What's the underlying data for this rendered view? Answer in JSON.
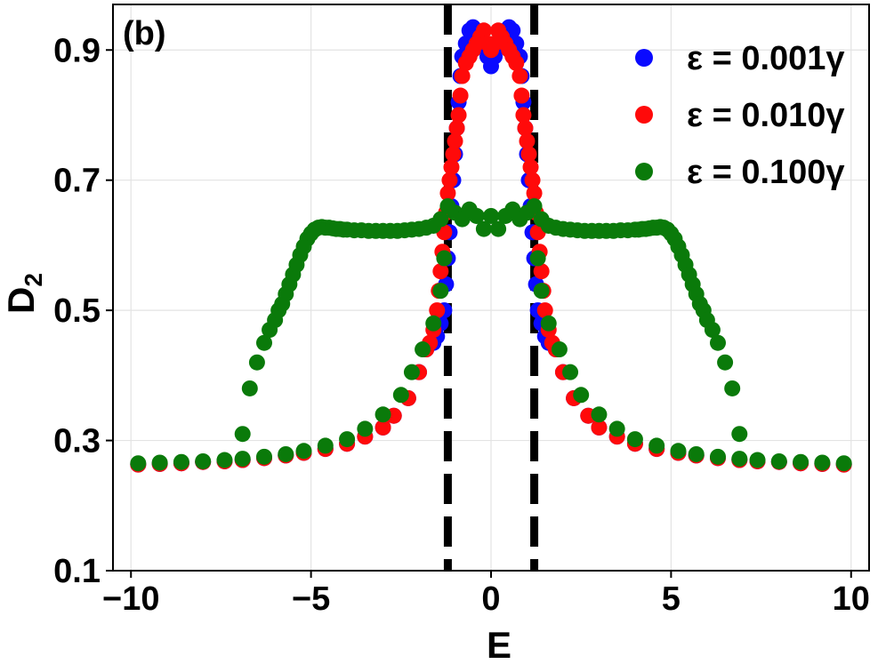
{
  "chart_data": {
    "type": "scatter",
    "panel_label": "(b)",
    "xlabel": "E",
    "ylabel_main": "D",
    "ylabel_sub": "2",
    "xlim": [
      -10.5,
      10.5
    ],
    "ylim": [
      0.1,
      0.97
    ],
    "xticks": [
      -10,
      -5,
      0,
      5,
      10
    ],
    "xtick_labels": [
      "−10",
      "−5",
      "0",
      "5",
      "10"
    ],
    "yticks": [
      0.1,
      0.3,
      0.5,
      0.7,
      0.9
    ],
    "ytick_labels": [
      "0.1",
      "0.3",
      "0.5",
      "0.7",
      "0.9"
    ],
    "grid": true,
    "legend_position": "top-right",
    "vlines": [
      -1.2,
      1.2
    ],
    "vline_color": "#000000",
    "series": [
      {
        "name": "ε = 0.001γ",
        "color": "#0a0aff",
        "x": [
          -9.8,
          -9.2,
          -8.6,
          -8.0,
          -7.4,
          -6.9,
          -6.3,
          -5.7,
          -5.2,
          -4.6,
          -4.0,
          -3.5,
          -3.0,
          -2.7,
          -2.3,
          -2.0,
          -1.8,
          -1.6,
          -1.5,
          -1.4,
          -1.3,
          -1.25,
          -1.2,
          -1.15,
          -1.1,
          -1.05,
          -1.0,
          -0.95,
          -0.9,
          -0.85,
          -0.8,
          -0.7,
          -0.6,
          -0.5,
          -0.4,
          -0.3,
          -0.2,
          -0.1,
          0.0,
          0.1,
          0.2,
          0.3,
          0.4,
          0.5,
          0.6,
          0.7,
          0.8,
          0.85,
          0.9,
          0.95,
          1.0,
          1.05,
          1.1,
          1.15,
          1.2,
          1.25,
          1.3,
          1.4,
          1.5,
          1.6,
          1.8,
          2.0,
          2.3,
          2.7,
          3.0,
          3.5,
          4.0,
          4.6,
          5.2,
          5.7,
          6.3,
          6.9,
          7.4,
          8.0,
          8.6,
          9.2,
          9.8
        ],
        "y": [
          0.263,
          0.264,
          0.265,
          0.267,
          0.268,
          0.27,
          0.273,
          0.277,
          0.281,
          0.287,
          0.295,
          0.306,
          0.32,
          0.338,
          0.365,
          0.405,
          0.44,
          0.45,
          0.46,
          0.48,
          0.5,
          0.54,
          0.58,
          0.62,
          0.66,
          0.7,
          0.74,
          0.78,
          0.82,
          0.86,
          0.89,
          0.91,
          0.93,
          0.935,
          0.93,
          0.92,
          0.905,
          0.89,
          0.875,
          0.89,
          0.905,
          0.92,
          0.93,
          0.935,
          0.93,
          0.91,
          0.89,
          0.86,
          0.82,
          0.78,
          0.74,
          0.7,
          0.66,
          0.62,
          0.58,
          0.54,
          0.5,
          0.48,
          0.46,
          0.45,
          0.44,
          0.405,
          0.365,
          0.338,
          0.32,
          0.306,
          0.295,
          0.287,
          0.281,
          0.277,
          0.273,
          0.27,
          0.268,
          0.267,
          0.265,
          0.264,
          0.263
        ]
      },
      {
        "name": "ε = 0.010γ",
        "color": "#ff0a0a",
        "x": [
          -9.8,
          -9.2,
          -8.6,
          -8.0,
          -7.4,
          -6.9,
          -6.3,
          -5.7,
          -5.2,
          -4.6,
          -4.0,
          -3.5,
          -3.0,
          -2.7,
          -2.3,
          -2.0,
          -1.8,
          -1.7,
          -1.6,
          -1.5,
          -1.45,
          -1.4,
          -1.35,
          -1.3,
          -1.25,
          -1.2,
          -1.15,
          -1.1,
          -1.05,
          -1.0,
          -0.95,
          -0.9,
          -0.85,
          -0.8,
          -0.7,
          -0.6,
          -0.5,
          -0.4,
          -0.3,
          -0.2,
          -0.1,
          0.0,
          0.1,
          0.2,
          0.3,
          0.4,
          0.5,
          0.6,
          0.7,
          0.8,
          0.85,
          0.9,
          0.95,
          1.0,
          1.05,
          1.1,
          1.15,
          1.2,
          1.25,
          1.3,
          1.35,
          1.4,
          1.45,
          1.5,
          1.6,
          1.7,
          1.8,
          2.0,
          2.3,
          2.7,
          3.0,
          3.5,
          4.0,
          4.6,
          5.2,
          5.7,
          6.3,
          6.9,
          7.4,
          8.0,
          8.6,
          9.2,
          9.8
        ],
        "y": [
          0.263,
          0.264,
          0.265,
          0.267,
          0.268,
          0.27,
          0.273,
          0.277,
          0.281,
          0.287,
          0.295,
          0.306,
          0.32,
          0.338,
          0.365,
          0.405,
          0.44,
          0.45,
          0.47,
          0.5,
          0.53,
          0.56,
          0.59,
          0.62,
          0.65,
          0.68,
          0.7,
          0.72,
          0.74,
          0.76,
          0.78,
          0.8,
          0.83,
          0.86,
          0.88,
          0.89,
          0.9,
          0.91,
          0.92,
          0.93,
          0.91,
          0.9,
          0.91,
          0.93,
          0.92,
          0.91,
          0.9,
          0.89,
          0.88,
          0.86,
          0.83,
          0.8,
          0.78,
          0.76,
          0.74,
          0.72,
          0.7,
          0.68,
          0.65,
          0.62,
          0.59,
          0.56,
          0.53,
          0.5,
          0.47,
          0.45,
          0.44,
          0.405,
          0.365,
          0.338,
          0.32,
          0.306,
          0.295,
          0.287,
          0.281,
          0.277,
          0.273,
          0.27,
          0.268,
          0.267,
          0.265,
          0.264,
          0.263
        ]
      },
      {
        "name": "ε = 0.100γ",
        "color": "#0a7a0a",
        "x": [
          -9.8,
          -9.2,
          -8.6,
          -8.0,
          -7.4,
          -6.9,
          -6.3,
          -5.7,
          -5.2,
          -4.6,
          -4.0,
          -3.5,
          -3.0,
          -2.5,
          -2.2,
          -1.9,
          -1.6,
          -1.4,
          -1.3,
          -6.9,
          -6.7,
          -6.5,
          -6.3,
          -6.15,
          -6.0,
          -5.9,
          -5.8,
          -5.7,
          -5.6,
          -5.5,
          -5.4,
          -5.3,
          -5.2,
          -5.1,
          -5.0,
          -4.9,
          -4.8,
          -4.7,
          -4.6,
          -4.5,
          -4.4,
          -4.3,
          -4.2,
          -4.1,
          -4.0,
          -3.8,
          -3.6,
          -3.4,
          -3.2,
          -3.0,
          -2.8,
          -2.6,
          -2.4,
          -2.2,
          -2.0,
          -1.8,
          -1.6,
          -1.4,
          -1.2,
          -1.0,
          -0.8,
          -0.6,
          -0.4,
          -0.2,
          0.0,
          0.2,
          0.4,
          0.6,
          0.8,
          1.0,
          1.2,
          1.4,
          1.6,
          1.8,
          2.0,
          2.2,
          2.4,
          2.6,
          2.8,
          3.0,
          3.2,
          3.4,
          3.6,
          3.8,
          4.0,
          4.1,
          4.2,
          4.3,
          4.4,
          4.5,
          4.6,
          4.7,
          4.8,
          4.9,
          5.0,
          5.1,
          5.2,
          5.3,
          5.4,
          5.5,
          5.6,
          5.7,
          5.8,
          5.9,
          6.0,
          6.15,
          6.3,
          6.5,
          6.7,
          6.9,
          1.3,
          1.4,
          1.6,
          1.9,
          2.2,
          2.5,
          3.0,
          3.5,
          4.0,
          4.6,
          5.2,
          5.7,
          6.3,
          6.9,
          7.4,
          8.0,
          8.6,
          9.2,
          9.8
        ],
        "y": [
          0.265,
          0.266,
          0.267,
          0.268,
          0.27,
          0.272,
          0.275,
          0.279,
          0.284,
          0.292,
          0.302,
          0.318,
          0.34,
          0.37,
          0.405,
          0.44,
          0.48,
          0.53,
          0.58,
          0.31,
          0.38,
          0.42,
          0.45,
          0.47,
          0.485,
          0.5,
          0.51,
          0.525,
          0.54,
          0.555,
          0.57,
          0.585,
          0.598,
          0.61,
          0.618,
          0.624,
          0.627,
          0.628,
          0.627,
          0.627,
          0.626,
          0.625,
          0.625,
          0.624,
          0.624,
          0.623,
          0.623,
          0.622,
          0.622,
          0.622,
          0.622,
          0.622,
          0.623,
          0.624,
          0.625,
          0.627,
          0.63,
          0.64,
          0.66,
          0.65,
          0.64,
          0.655,
          0.645,
          0.625,
          0.645,
          0.625,
          0.645,
          0.655,
          0.64,
          0.65,
          0.66,
          0.64,
          0.63,
          0.627,
          0.625,
          0.624,
          0.623,
          0.622,
          0.622,
          0.622,
          0.622,
          0.622,
          0.623,
          0.623,
          0.624,
          0.624,
          0.625,
          0.625,
          0.626,
          0.627,
          0.627,
          0.628,
          0.627,
          0.624,
          0.618,
          0.61,
          0.598,
          0.585,
          0.57,
          0.555,
          0.54,
          0.525,
          0.51,
          0.5,
          0.485,
          0.47,
          0.45,
          0.42,
          0.38,
          0.31,
          0.58,
          0.53,
          0.48,
          0.44,
          0.405,
          0.37,
          0.34,
          0.318,
          0.302,
          0.292,
          0.284,
          0.279,
          0.275,
          0.272,
          0.27,
          0.268,
          0.267,
          0.266,
          0.265
        ]
      }
    ]
  }
}
